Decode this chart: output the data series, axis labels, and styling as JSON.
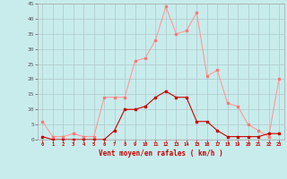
{
  "hours": [
    0,
    1,
    2,
    3,
    4,
    5,
    6,
    7,
    8,
    9,
    10,
    11,
    12,
    13,
    14,
    15,
    16,
    17,
    18,
    19,
    20,
    21,
    22,
    23
  ],
  "vent_moyen": [
    1,
    0,
    0,
    0,
    0,
    0,
    0,
    3,
    10,
    10,
    11,
    14,
    16,
    14,
    14,
    6,
    6,
    3,
    1,
    1,
    1,
    1,
    2,
    2
  ],
  "vent_rafales": [
    6,
    1,
    1,
    2,
    1,
    1,
    14,
    14,
    14,
    26,
    27,
    33,
    44,
    35,
    36,
    42,
    21,
    23,
    12,
    11,
    5,
    3,
    1,
    20
  ],
  "xlabel": "Vent moyen/en rafales ( km/h )",
  "ylim": [
    0,
    45
  ],
  "yticks": [
    0,
    5,
    10,
    15,
    20,
    25,
    30,
    35,
    40,
    45
  ],
  "bg_color": "#c8ecec",
  "grid_color": "#b0c8c8",
  "line_color_moyen": "#cc0000",
  "line_color_rafales": "#ff9999",
  "marker_color_moyen": "#cc0000",
  "marker_color_rafales": "#ff7777",
  "tick_color": "#cc0000",
  "ylabel_color": "#555555",
  "xlabel_color": "#cc0000"
}
